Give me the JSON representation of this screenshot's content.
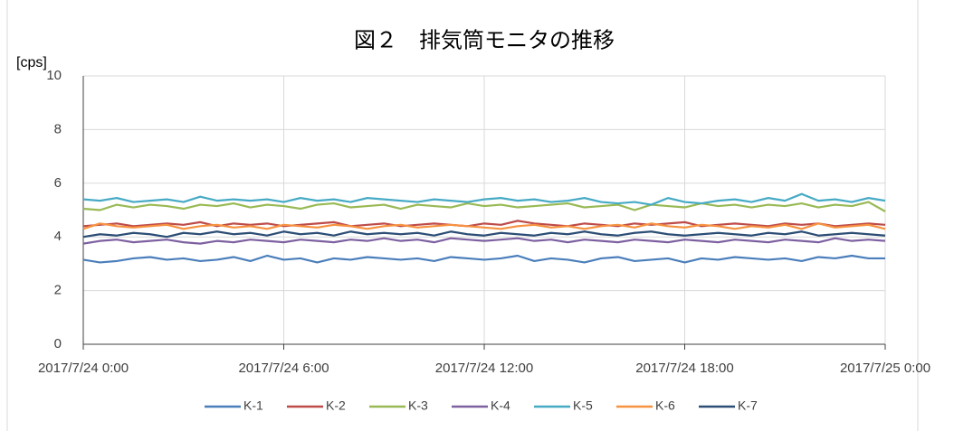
{
  "chart_data": {
    "type": "line",
    "title": "図２　排気筒モニタの推移",
    "y_label": "[cps]",
    "x": [
      "2017/7/24 0:00",
      "2017/7/24 0:30",
      "2017/7/24 1:00",
      "2017/7/24 1:30",
      "2017/7/24 2:00",
      "2017/7/24 2:30",
      "2017/7/24 3:00",
      "2017/7/24 3:30",
      "2017/7/24 4:00",
      "2017/7/24 4:30",
      "2017/7/24 5:00",
      "2017/7/24 5:30",
      "2017/7/24 6:00",
      "2017/7/24 6:30",
      "2017/7/24 7:00",
      "2017/7/24 7:30",
      "2017/7/24 8:00",
      "2017/7/24 8:30",
      "2017/7/24 9:00",
      "2017/7/24 9:30",
      "2017/7/24 10:00",
      "2017/7/24 10:30",
      "2017/7/24 11:00",
      "2017/7/24 11:30",
      "2017/7/24 12:00",
      "2017/7/24 12:30",
      "2017/7/24 13:00",
      "2017/7/24 13:30",
      "2017/7/24 14:00",
      "2017/7/24 14:30",
      "2017/7/24 15:00",
      "2017/7/24 15:30",
      "2017/7/24 16:00",
      "2017/7/24 16:30",
      "2017/7/24 17:00",
      "2017/7/24 17:30",
      "2017/7/24 18:00",
      "2017/7/24 18:30",
      "2017/7/24 19:00",
      "2017/7/24 19:30",
      "2017/7/24 20:00",
      "2017/7/24 20:30",
      "2017/7/24 21:00",
      "2017/7/24 21:30",
      "2017/7/24 22:00",
      "2017/7/24 22:30",
      "2017/7/24 23:00",
      "2017/7/24 23:30",
      "2017/7/25 0:00"
    ],
    "series": [
      {
        "name": "K-1",
        "color": "#4a7ebb",
        "values": [
          3.15,
          3.05,
          3.1,
          3.2,
          3.25,
          3.15,
          3.2,
          3.1,
          3.15,
          3.25,
          3.1,
          3.3,
          3.15,
          3.2,
          3.05,
          3.2,
          3.15,
          3.25,
          3.2,
          3.15,
          3.2,
          3.1,
          3.25,
          3.2,
          3.15,
          3.2,
          3.3,
          3.1,
          3.2,
          3.15,
          3.05,
          3.2,
          3.25,
          3.1,
          3.15,
          3.2,
          3.05,
          3.2,
          3.15,
          3.25,
          3.2,
          3.15,
          3.2,
          3.1,
          3.25,
          3.2,
          3.3,
          3.2,
          3.2
        ]
      },
      {
        "name": "K-2",
        "color": "#be4b48",
        "values": [
          4.4,
          4.45,
          4.5,
          4.4,
          4.45,
          4.5,
          4.45,
          4.55,
          4.4,
          4.5,
          4.45,
          4.5,
          4.4,
          4.45,
          4.5,
          4.55,
          4.4,
          4.45,
          4.5,
          4.4,
          4.45,
          4.5,
          4.45,
          4.4,
          4.5,
          4.45,
          4.6,
          4.5,
          4.45,
          4.4,
          4.5,
          4.45,
          4.4,
          4.5,
          4.45,
          4.5,
          4.55,
          4.4,
          4.45,
          4.5,
          4.45,
          4.4,
          4.5,
          4.45,
          4.5,
          4.4,
          4.45,
          4.5,
          4.45
        ]
      },
      {
        "name": "K-3",
        "color": "#98b954",
        "values": [
          5.05,
          5.0,
          5.2,
          5.1,
          5.2,
          5.15,
          5.05,
          5.2,
          5.15,
          5.25,
          5.1,
          5.2,
          5.15,
          5.05,
          5.2,
          5.25,
          5.1,
          5.15,
          5.2,
          5.05,
          5.2,
          5.15,
          5.1,
          5.25,
          5.15,
          5.2,
          5.1,
          5.15,
          5.2,
          5.25,
          5.1,
          5.15,
          5.2,
          5.0,
          5.2,
          5.15,
          5.1,
          5.25,
          5.15,
          5.2,
          5.1,
          5.2,
          5.15,
          5.25,
          5.1,
          5.2,
          5.15,
          5.3,
          4.95
        ]
      },
      {
        "name": "K-4",
        "color": "#7d60a0",
        "values": [
          3.75,
          3.85,
          3.9,
          3.8,
          3.85,
          3.9,
          3.8,
          3.75,
          3.85,
          3.8,
          3.9,
          3.85,
          3.8,
          3.9,
          3.85,
          3.8,
          3.9,
          3.85,
          3.95,
          3.85,
          3.9,
          3.8,
          3.95,
          3.9,
          3.85,
          3.9,
          3.95,
          3.85,
          3.9,
          3.8,
          3.9,
          3.85,
          3.8,
          3.9,
          3.85,
          3.8,
          3.9,
          3.85,
          3.8,
          3.9,
          3.85,
          3.8,
          3.9,
          3.85,
          3.8,
          3.95,
          3.85,
          3.9,
          3.85
        ]
      },
      {
        "name": "K-5",
        "color": "#46aac5",
        "values": [
          5.4,
          5.35,
          5.45,
          5.3,
          5.35,
          5.4,
          5.3,
          5.5,
          5.35,
          5.4,
          5.35,
          5.4,
          5.3,
          5.45,
          5.35,
          5.4,
          5.3,
          5.45,
          5.4,
          5.35,
          5.3,
          5.4,
          5.35,
          5.3,
          5.4,
          5.45,
          5.35,
          5.4,
          5.3,
          5.35,
          5.45,
          5.3,
          5.25,
          5.3,
          5.2,
          5.45,
          5.3,
          5.25,
          5.35,
          5.4,
          5.3,
          5.45,
          5.35,
          5.6,
          5.35,
          5.4,
          5.3,
          5.45,
          5.35
        ]
      },
      {
        "name": "K-6",
        "color": "#f69240",
        "values": [
          4.3,
          4.5,
          4.4,
          4.35,
          4.4,
          4.45,
          4.3,
          4.4,
          4.45,
          4.35,
          4.4,
          4.3,
          4.45,
          4.4,
          4.35,
          4.45,
          4.4,
          4.3,
          4.4,
          4.45,
          4.35,
          4.4,
          4.45,
          4.4,
          4.35,
          4.3,
          4.4,
          4.45,
          4.35,
          4.4,
          4.3,
          4.4,
          4.45,
          4.35,
          4.5,
          4.4,
          4.35,
          4.45,
          4.4,
          4.3,
          4.4,
          4.35,
          4.45,
          4.3,
          4.5,
          4.35,
          4.4,
          4.45,
          4.3
        ]
      },
      {
        "name": "K-7",
        "color": "#2c4d75",
        "values": [
          4.0,
          4.1,
          4.05,
          4.15,
          4.1,
          4.0,
          4.15,
          4.1,
          4.2,
          4.1,
          4.15,
          4.05,
          4.2,
          4.1,
          4.15,
          4.05,
          4.2,
          4.1,
          4.15,
          4.1,
          4.15,
          4.05,
          4.2,
          4.1,
          4.05,
          4.15,
          4.1,
          4.05,
          4.15,
          4.1,
          4.2,
          4.1,
          4.05,
          4.15,
          4.2,
          4.1,
          4.05,
          4.1,
          4.15,
          4.1,
          4.05,
          4.15,
          4.1,
          4.2,
          4.05,
          4.1,
          4.15,
          4.1,
          4.05
        ]
      }
    ],
    "xlim": [
      "2017/7/24 0:00",
      "2017/7/25 0:00"
    ],
    "xticks": [
      "2017/7/24 0:00",
      "2017/7/24 6:00",
      "2017/7/24 12:00",
      "2017/7/24 18:00",
      "2017/7/25 0:00"
    ],
    "ylim": [
      0,
      10
    ],
    "yticks": [
      0,
      2,
      4,
      6,
      8,
      10
    ],
    "grid": true,
    "legend": "bottom"
  }
}
